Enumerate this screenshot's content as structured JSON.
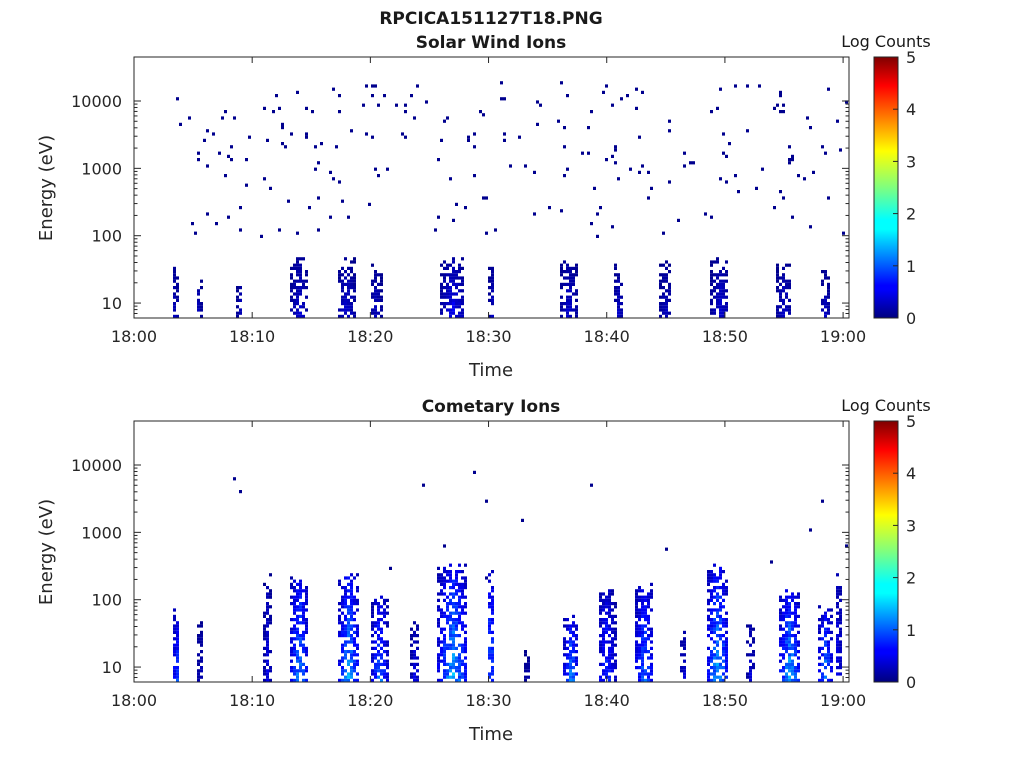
{
  "figure_title": "RPCICA151127T18.PNG",
  "chart_data": [
    {
      "type": "heatmap",
      "title": "Solar Wind Ions",
      "xlabel": "Time",
      "ylabel": "Energy (eV)",
      "x_tick_labels": [
        "18:00",
        "18:10",
        "18:20",
        "18:30",
        "18:40",
        "18:50",
        "19:00"
      ],
      "x_ticks_minutes": [
        0,
        10,
        20,
        30,
        40,
        50,
        60
      ],
      "xlim_minutes": [
        0,
        60.5
      ],
      "y_scale": "log",
      "y_tick_labels": [
        "10",
        "100",
        "1000",
        "10000"
      ],
      "y_ticks": [
        10,
        100,
        1000,
        10000
      ],
      "ylim": [
        6,
        45000
      ],
      "colorbar": {
        "label": "Log Counts",
        "min": 0,
        "max": 5,
        "tick_labels": [
          "0",
          "1",
          "2",
          "3",
          "4",
          "5"
        ],
        "colormap": "jet"
      },
      "data_start_minute": 3.2,
      "data_end_minute": 60.5,
      "description": "sparse single-count noise across 100-20000 eV; denser low-count streaks below 40 eV",
      "bursts": [
        {
          "t": 3.5,
          "width": 0.6,
          "top_eV": 30,
          "max_log": 0.4
        },
        {
          "t": 5.5,
          "width": 0.5,
          "top_eV": 20,
          "max_log": 0.4
        },
        {
          "t": 9.0,
          "width": 0.5,
          "top_eV": 18,
          "max_log": 0.4
        },
        {
          "t": 14.0,
          "width": 1.4,
          "top_eV": 40,
          "max_log": 0.5
        },
        {
          "t": 18.0,
          "width": 1.5,
          "top_eV": 35,
          "max_log": 0.5
        },
        {
          "t": 20.5,
          "width": 1.0,
          "top_eV": 30,
          "max_log": 0.4
        },
        {
          "t": 27.0,
          "width": 2.0,
          "top_eV": 35,
          "max_log": 0.7
        },
        {
          "t": 30.3,
          "width": 0.5,
          "top_eV": 30,
          "max_log": 0.4
        },
        {
          "t": 36.8,
          "width": 1.4,
          "top_eV": 35,
          "max_log": 0.5
        },
        {
          "t": 41.0,
          "width": 1.0,
          "top_eV": 30,
          "max_log": 0.4
        },
        {
          "t": 45.0,
          "width": 1.0,
          "top_eV": 30,
          "max_log": 0.4
        },
        {
          "t": 49.6,
          "width": 1.5,
          "top_eV": 35,
          "max_log": 0.5
        },
        {
          "t": 55.0,
          "width": 1.2,
          "top_eV": 30,
          "max_log": 0.5
        },
        {
          "t": 58.5,
          "width": 0.8,
          "top_eV": 25,
          "max_log": 0.4
        }
      ],
      "noise_density": 0.022,
      "noise_band_eV": [
        90,
        20000
      ]
    },
    {
      "type": "heatmap",
      "title": "Cometary Ions",
      "xlabel": "Time",
      "ylabel": "Energy (eV)",
      "x_tick_labels": [
        "18:00",
        "18:10",
        "18:20",
        "18:30",
        "18:40",
        "18:50",
        "19:00"
      ],
      "x_ticks_minutes": [
        0,
        10,
        20,
        30,
        40,
        50,
        60
      ],
      "xlim_minutes": [
        0,
        60.5
      ],
      "y_scale": "log",
      "y_tick_labels": [
        "10",
        "100",
        "1000",
        "10000"
      ],
      "y_ticks": [
        10,
        100,
        1000,
        10000
      ],
      "ylim": [
        6,
        45000
      ],
      "colorbar": {
        "label": "Log Counts",
        "min": 0,
        "max": 5,
        "tick_labels": [
          "0",
          "1",
          "2",
          "3",
          "4",
          "5"
        ],
        "colormap": "jet"
      },
      "data_start_minute": 3.2,
      "data_end_minute": 60.5,
      "description": "periodic low-energy cometary ion bursts (10-250 eV), peak about 1.7 log counts near 20-40 eV",
      "bursts": [
        {
          "t": 3.6,
          "width": 0.5,
          "top_eV": 60,
          "max_log": 1.4
        },
        {
          "t": 5.6,
          "width": 0.4,
          "top_eV": 40,
          "max_log": 0.5
        },
        {
          "t": 11.3,
          "width": 0.6,
          "top_eV": 150,
          "max_log": 0.6
        },
        {
          "t": 14.0,
          "width": 1.5,
          "top_eV": 200,
          "max_log": 1.6
        },
        {
          "t": 18.2,
          "width": 1.8,
          "top_eV": 200,
          "max_log": 1.7
        },
        {
          "t": 20.8,
          "width": 1.3,
          "top_eV": 90,
          "max_log": 1.5
        },
        {
          "t": 23.8,
          "width": 0.7,
          "top_eV": 40,
          "max_log": 0.7
        },
        {
          "t": 27.0,
          "width": 2.5,
          "top_eV": 250,
          "max_log": 1.8
        },
        {
          "t": 30.2,
          "width": 0.7,
          "top_eV": 250,
          "max_log": 1.5
        },
        {
          "t": 33.3,
          "width": 0.6,
          "top_eV": 18,
          "max_log": 0.3
        },
        {
          "t": 37.0,
          "width": 1.2,
          "top_eV": 50,
          "max_log": 1.6
        },
        {
          "t": 40.0,
          "width": 1.5,
          "top_eV": 120,
          "max_log": 1.1
        },
        {
          "t": 43.2,
          "width": 1.6,
          "top_eV": 140,
          "max_log": 1.4
        },
        {
          "t": 46.5,
          "width": 0.6,
          "top_eV": 30,
          "max_log": 0.6
        },
        {
          "t": 49.4,
          "width": 1.8,
          "top_eV": 250,
          "max_log": 1.8
        },
        {
          "t": 52.2,
          "width": 0.6,
          "top_eV": 40,
          "max_log": 0.6
        },
        {
          "t": 55.5,
          "width": 1.8,
          "top_eV": 120,
          "max_log": 1.8
        },
        {
          "t": 58.5,
          "width": 1.3,
          "top_eV": 60,
          "max_log": 1.5
        },
        {
          "t": 59.6,
          "width": 0.6,
          "top_eV": 200,
          "max_log": 0.8
        }
      ],
      "noise_density": 0.002,
      "noise_band_eV": [
        200,
        10000
      ]
    }
  ]
}
